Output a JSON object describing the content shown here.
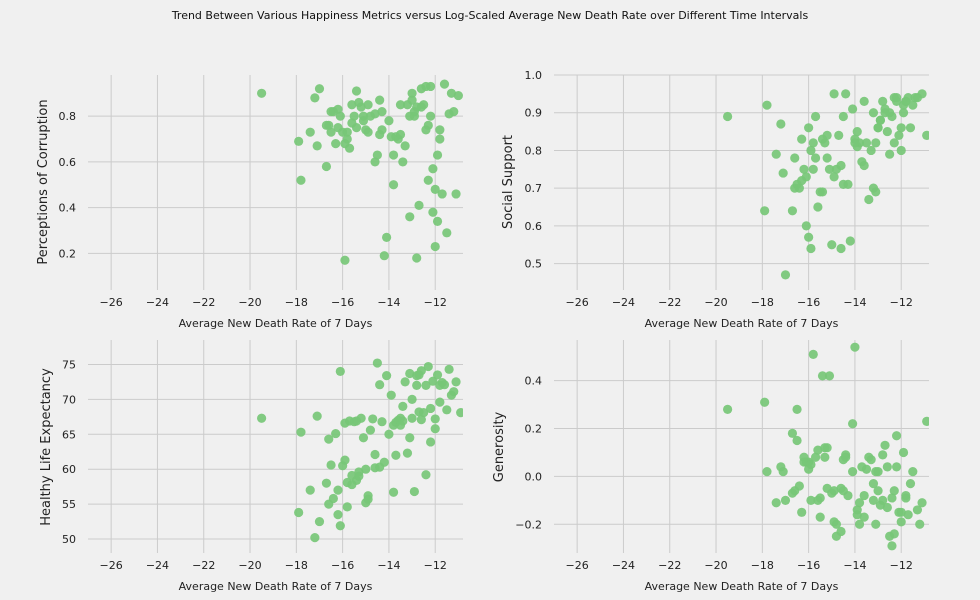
{
  "figure": {
    "suptitle": "Trend Between Various Happiness Metrics versus Log-Scaled Average New Death Rate over Different Time Intervals",
    "colors": {
      "background": "#f0f0f0",
      "grid": "#cbcbcb",
      "marker": "#77c777"
    }
  },
  "chart_data": [
    {
      "type": "scatter",
      "title": "",
      "xlabel": "Average New Death Rate of 7 Days",
      "ylabel": "Perceptions of Corruption",
      "xlim": [
        -27,
        -10.8
      ],
      "ylim": [
        0.04,
        0.98
      ],
      "xticks": [
        -26,
        -24,
        -22,
        -20,
        -18,
        -16,
        -14,
        -12
      ],
      "yticks": [
        0.2,
        0.4,
        0.6,
        0.8
      ],
      "ytick_labels": [
        "0.2",
        "0.4",
        "0.6",
        "0.8"
      ],
      "grid": true,
      "x": [
        -19.5,
        -17.9,
        -17.8,
        -17.4,
        -17.2,
        -17.1,
        -17.0,
        -16.7,
        -16.6,
        -16.5,
        -16.5,
        -16.4,
        -16.3,
        -16.2,
        -16.1,
        -16.0,
        -15.9,
        -15.8,
        -15.8,
        -15.7,
        -15.6,
        -15.5,
        -15.4,
        -15.3,
        -15.2,
        -15.1,
        -15.0,
        -14.9,
        -14.8,
        -14.6,
        -14.5,
        -14.4,
        -14.3,
        -14.1,
        -14.0,
        -13.9,
        -13.8,
        -13.7,
        -13.6,
        -13.5,
        -13.4,
        -13.2,
        -13.1,
        -13.0,
        -12.9,
        -12.8,
        -12.7,
        -12.6,
        -12.5,
        -12.4,
        -12.3,
        -12.2,
        -12.1,
        -12.0,
        -11.9,
        -11.8,
        -11.7,
        -11.5,
        -11.3,
        -11.1,
        -16.2,
        -15.4,
        -15.1,
        -14.9,
        -14.6,
        -14.2,
        -13.8,
        -13.5,
        -13.1,
        -12.8,
        -12.4,
        -12.1,
        -11.9,
        -11.6,
        -11.2,
        -15.9,
        -14.3,
        -12.3,
        -11.8,
        -12.0,
        -13.3,
        -12.6,
        -11.4,
        -15.6,
        -16.7,
        -14.4,
        -13.0,
        -12.2,
        -11.0,
        -12.9
      ],
      "y": [
        0.9,
        0.69,
        0.52,
        0.73,
        0.88,
        0.67,
        0.92,
        0.58,
        0.76,
        0.73,
        0.82,
        0.82,
        0.68,
        0.83,
        0.8,
        0.73,
        0.68,
        0.7,
        0.73,
        0.66,
        0.85,
        0.8,
        0.75,
        0.86,
        0.84,
        0.8,
        0.74,
        0.73,
        0.8,
        0.6,
        0.63,
        0.87,
        0.82,
        0.27,
        0.78,
        0.71,
        0.63,
        0.71,
        0.7,
        0.72,
        0.6,
        0.85,
        0.8,
        0.87,
        0.82,
        0.84,
        0.41,
        0.92,
        0.85,
        0.74,
        0.76,
        0.8,
        0.57,
        0.48,
        0.63,
        0.74,
        0.46,
        0.29,
        0.9,
        0.46,
        0.75,
        0.91,
        0.78,
        0.85,
        0.81,
        0.19,
        0.5,
        0.85,
        0.36,
        0.18,
        0.93,
        0.38,
        0.34,
        0.94,
        0.82,
        0.17,
        0.74,
        0.52,
        0.7,
        0.23,
        0.67,
        0.84,
        0.81,
        0.77,
        0.76,
        0.72,
        0.9,
        0.93,
        0.89,
        0.8
      ]
    },
    {
      "type": "scatter",
      "title": "",
      "xlabel": "Average New Death Rate of 7 Days",
      "ylabel": "Social Support",
      "xlim": [
        -27,
        -10.8
      ],
      "ylim": [
        0.43,
        1.0
      ],
      "xticks": [
        -26,
        -24,
        -22,
        -20,
        -18,
        -16,
        -14,
        -12
      ],
      "yticks": [
        0.5,
        0.6,
        0.7,
        0.8,
        0.9,
        1.0
      ],
      "ytick_labels": [
        "0.5",
        "0.6",
        "0.7",
        "0.8",
        "0.9",
        "1.0"
      ],
      "grid": true,
      "x": [
        -19.5,
        -17.8,
        -17.9,
        -17.4,
        -17.1,
        -17.2,
        -17.0,
        -16.7,
        -16.6,
        -16.5,
        -16.4,
        -16.3,
        -16.2,
        -16.1,
        -16.0,
        -15.9,
        -15.8,
        -15.7,
        -15.6,
        -15.5,
        -15.4,
        -15.3,
        -15.2,
        -15.1,
        -15.0,
        -14.9,
        -14.8,
        -14.6,
        -14.5,
        -14.4,
        -14.3,
        -14.1,
        -14.0,
        -13.9,
        -13.8,
        -13.7,
        -13.6,
        -13.5,
        -13.4,
        -13.3,
        -13.2,
        -13.1,
        -13.0,
        -12.9,
        -12.8,
        -12.7,
        -12.6,
        -12.5,
        -12.4,
        -12.3,
        -12.2,
        -12.1,
        -12.0,
        -11.9,
        -11.8,
        -11.7,
        -11.5,
        -11.3,
        -11.1,
        -10.9,
        -16.6,
        -16.0,
        -15.9,
        -15.4,
        -14.9,
        -14.6,
        -14.2,
        -13.9,
        -13.2,
        -12.9,
        -12.5,
        -12.0,
        -11.6,
        -16.1,
        -15.7,
        -14.7,
        -14.0,
        -13.1,
        -12.3,
        -11.9,
        -16.3,
        -15.2,
        -13.6,
        -12.7,
        -11.4,
        -15.8,
        -14.5,
        -13.0,
        -12.2,
        -11.8
      ],
      "y": [
        0.89,
        0.92,
        0.64,
        0.79,
        0.74,
        0.87,
        0.47,
        0.64,
        0.7,
        0.71,
        0.7,
        0.72,
        0.75,
        0.6,
        0.86,
        0.8,
        0.75,
        0.78,
        0.65,
        0.69,
        0.69,
        0.82,
        0.78,
        0.75,
        0.55,
        0.95,
        0.75,
        0.76,
        0.71,
        0.95,
        0.71,
        0.91,
        0.83,
        0.85,
        0.82,
        0.77,
        0.93,
        0.82,
        0.67,
        0.8,
        0.9,
        0.82,
        0.86,
        0.88,
        0.93,
        0.91,
        0.85,
        0.9,
        0.89,
        0.82,
        0.93,
        0.84,
        0.86,
        0.9,
        0.93,
        0.94,
        0.92,
        0.94,
        0.95,
        0.84,
        0.78,
        0.57,
        0.54,
        0.83,
        0.73,
        0.54,
        0.56,
        0.81,
        0.7,
        0.88,
        0.79,
        0.8,
        0.86,
        0.73,
        0.89,
        0.84,
        0.82,
        0.69,
        0.94,
        0.92,
        0.83,
        0.84,
        0.76,
        0.9,
        0.94,
        0.82,
        0.89,
        0.86,
        0.94,
        0.93
      ]
    },
    {
      "type": "scatter",
      "title": "",
      "xlabel": "Average New Death Rate of 7 Days",
      "ylabel": "Healthy Life Expectancy",
      "xlim": [
        -27,
        -10.8
      ],
      "ylim": [
        48.0,
        78.5
      ],
      "xticks": [
        -26,
        -24,
        -22,
        -20,
        -18,
        -16,
        -14,
        -12
      ],
      "yticks": [
        50,
        55,
        60,
        65,
        70,
        75
      ],
      "ytick_labels": [
        "50",
        "55",
        "60",
        "65",
        "70",
        "75"
      ],
      "grid": true,
      "x": [
        -19.5,
        -17.9,
        -17.8,
        -17.4,
        -17.2,
        -17.1,
        -17.0,
        -16.7,
        -16.6,
        -16.5,
        -16.4,
        -16.3,
        -16.2,
        -16.1,
        -16.0,
        -15.9,
        -15.8,
        -15.7,
        -15.6,
        -15.5,
        -15.4,
        -15.3,
        -15.2,
        -15.1,
        -15.0,
        -14.9,
        -14.8,
        -14.6,
        -14.5,
        -14.4,
        -14.3,
        -14.1,
        -14.0,
        -13.9,
        -13.8,
        -13.7,
        -13.6,
        -13.5,
        -13.4,
        -13.3,
        -13.2,
        -13.1,
        -13.0,
        -12.9,
        -12.8,
        -12.7,
        -12.6,
        -12.5,
        -12.4,
        -12.3,
        -12.2,
        -12.1,
        -12.0,
        -11.9,
        -11.8,
        -11.7,
        -11.5,
        -11.3,
        -11.1,
        -10.9,
        -16.2,
        -15.8,
        -15.4,
        -15.0,
        -14.6,
        -14.2,
        -13.8,
        -13.4,
        -13.0,
        -12.6,
        -12.2,
        -11.8,
        -11.4,
        -16.6,
        -15.6,
        -14.7,
        -13.7,
        -12.8,
        -12.0,
        -11.2,
        -16.1,
        -15.3,
        -14.4,
        -13.5,
        -12.4,
        -11.6,
        -15.9,
        -14.9,
        -13.1,
        -12.7
      ],
      "y": [
        67.3,
        53.8,
        65.3,
        57.0,
        50.2,
        67.6,
        52.5,
        58.0,
        55.0,
        60.6,
        55.8,
        65.1,
        53.5,
        74.0,
        60.5,
        61.3,
        58.1,
        66.9,
        59.1,
        66.8,
        66.9,
        59.6,
        67.3,
        64.5,
        60.0,
        56.2,
        65.6,
        62.1,
        75.2,
        72.1,
        66.8,
        73.4,
        65.0,
        70.6,
        56.7,
        66.7,
        67.0,
        67.3,
        69.0,
        72.5,
        62.3,
        73.7,
        70.0,
        56.8,
        72.0,
        68.2,
        74.1,
        68.1,
        72.0,
        74.7,
        63.9,
        72.6,
        65.8,
        73.5,
        69.6,
        72.4,
        68.5,
        70.6,
        72.5,
        68.1,
        57.0,
        54.6,
        58.4,
        55.2,
        60.2,
        61.0,
        66.3,
        66.9,
        67.3,
        67.1,
        68.7,
        72.0,
        74.3,
        64.3,
        57.8,
        67.2,
        62.0,
        73.4,
        67.2,
        71.1,
        51.9,
        59.0,
        60.3,
        66.3,
        59.2,
        72.1,
        66.6,
        55.7,
        64.5,
        73.5
      ]
    },
    {
      "type": "scatter",
      "title": "",
      "xlabel": "Average New Death Rate of 7 Days",
      "ylabel": "Generosity",
      "xlim": [
        -27,
        -10.8
      ],
      "ylim": [
        -0.32,
        0.57
      ],
      "xticks": [
        -26,
        -24,
        -22,
        -20,
        -18,
        -16,
        -14,
        -12
      ],
      "yticks": [
        -0.2,
        0.0,
        0.2,
        0.4
      ],
      "ytick_labels": [
        "−0.2",
        "0.0",
        "0.2",
        "0.4"
      ],
      "grid": true,
      "x": [
        -19.5,
        -17.9,
        -17.8,
        -17.4,
        -17.2,
        -17.1,
        -17.0,
        -16.7,
        -16.6,
        -16.5,
        -16.4,
        -16.3,
        -16.2,
        -16.1,
        -16.0,
        -15.9,
        -15.8,
        -15.7,
        -15.6,
        -15.5,
        -15.4,
        -15.3,
        -15.2,
        -15.1,
        -15.0,
        -14.9,
        -14.8,
        -14.6,
        -14.5,
        -14.4,
        -14.3,
        -14.1,
        -14.0,
        -13.9,
        -13.8,
        -13.7,
        -13.6,
        -13.5,
        -13.4,
        -13.3,
        -13.2,
        -13.1,
        -13.0,
        -12.9,
        -12.8,
        -12.7,
        -12.6,
        -12.5,
        -12.4,
        -12.3,
        -12.2,
        -12.1,
        -12.0,
        -11.9,
        -11.8,
        -11.7,
        -11.5,
        -11.3,
        -11.1,
        -10.9,
        -16.5,
        -16.2,
        -15.9,
        -15.5,
        -15.2,
        -14.8,
        -14.5,
        -14.1,
        -13.6,
        -13.2,
        -12.8,
        -12.4,
        -12.0,
        -11.6,
        -11.2,
        -16.7,
        -16.0,
        -15.3,
        -14.6,
        -13.9,
        -13.1,
        -12.6,
        -12.2,
        -11.8,
        -15.6,
        -14.9,
        -14.4,
        -13.8,
        -13.0,
        -12.3
      ],
      "y": [
        0.28,
        0.31,
        0.02,
        -0.11,
        0.04,
        0.02,
        -0.1,
        0.18,
        -0.06,
        0.28,
        -0.04,
        -0.15,
        0.08,
        0.06,
        0.06,
        -0.1,
        0.51,
        0.08,
        0.11,
        -0.09,
        0.42,
        0.08,
        -0.05,
        0.42,
        -0.07,
        -0.19,
        -0.25,
        -0.05,
        0.07,
        0.09,
        -0.08,
        0.22,
        0.54,
        -0.14,
        -0.11,
        0.04,
        -0.08,
        0.03,
        0.08,
        0.07,
        -0.03,
        -0.2,
        0.02,
        -0.12,
        -0.1,
        0.13,
        0.04,
        -0.25,
        -0.09,
        -0.06,
        0.04,
        -0.15,
        -0.19,
        0.1,
        -0.09,
        -0.16,
        0.02,
        -0.14,
        -0.11,
        0.23,
        0.15,
        0.06,
        0.05,
        -0.17,
        0.12,
        -0.2,
        -0.06,
        0.02,
        -0.17,
        -0.1,
        0.09,
        -0.29,
        -0.15,
        -0.03,
        -0.2,
        -0.07,
        0.03,
        0.12,
        -0.23,
        -0.16,
        0.02,
        -0.13,
        0.17,
        -0.08,
        -0.1,
        -0.06,
        0.08,
        -0.2,
        -0.06,
        -0.24
      ]
    }
  ]
}
